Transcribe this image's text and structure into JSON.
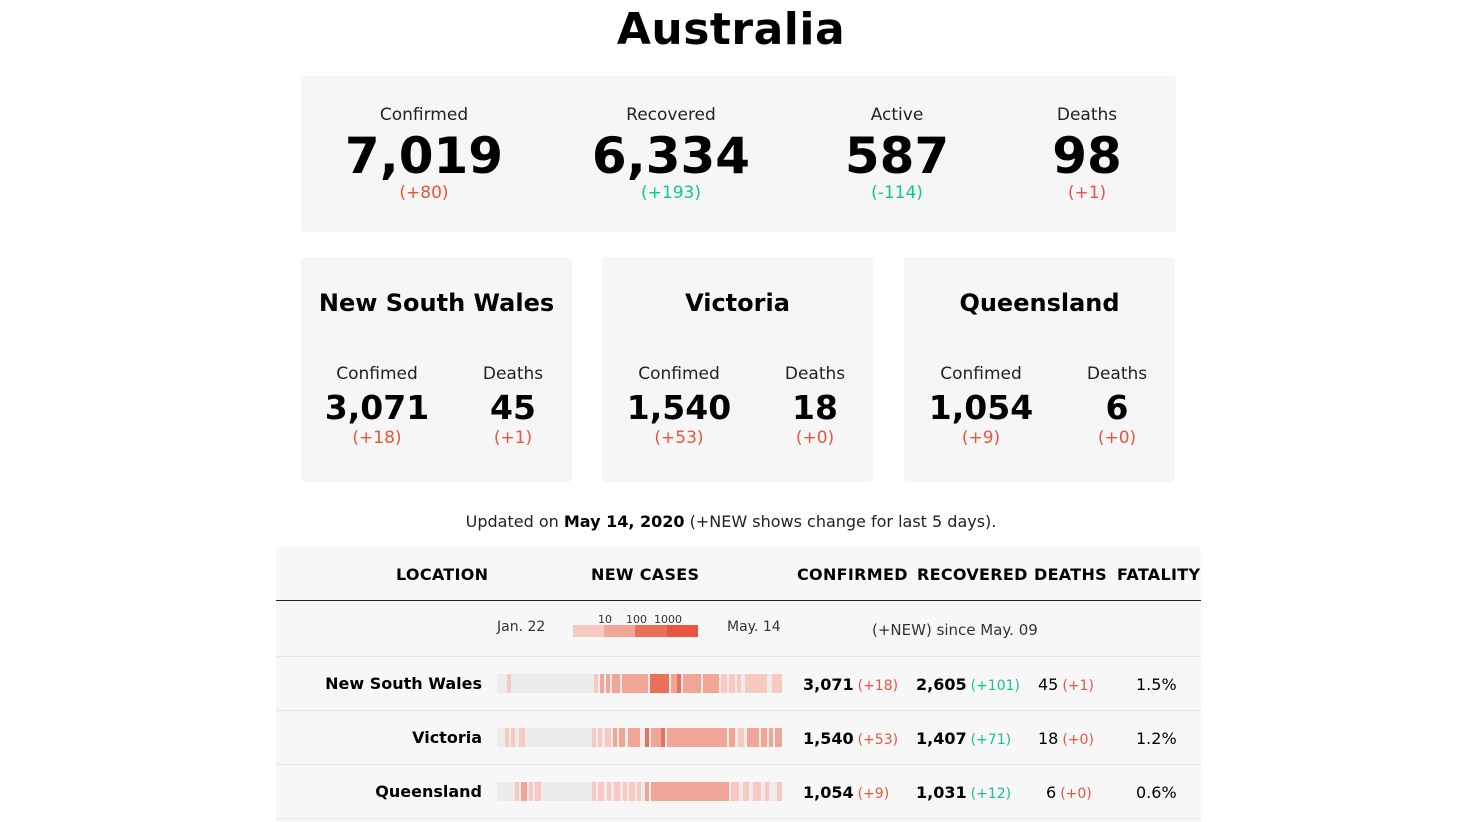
{
  "country": "Australia",
  "summary": {
    "confirmed": {
      "label": "Confirmed",
      "value": "7,019",
      "change": "(+80)"
    },
    "recovered": {
      "label": "Recovered",
      "value": "6,334",
      "change": "(+193)"
    },
    "active": {
      "label": "Active",
      "value": "587",
      "change": "(-114)"
    },
    "deaths": {
      "label": "Deaths",
      "value": "98",
      "change": "(+1)"
    }
  },
  "states": [
    {
      "name": "New South Wales",
      "confirmed_label": "Confimed",
      "confirmed": "3,071",
      "confirmed_change": "(+18)",
      "deaths_label": "Deaths",
      "deaths": "45",
      "deaths_change": "(+1)"
    },
    {
      "name": "Victoria",
      "confirmed_label": "Confimed",
      "confirmed": "1,540",
      "confirmed_change": "(+53)",
      "deaths_label": "Deaths",
      "deaths": "18",
      "deaths_change": "(+0)"
    },
    {
      "name": "Queensland",
      "confirmed_label": "Confimed",
      "confirmed": "1,054",
      "confirmed_change": "(+9)",
      "deaths_label": "Deaths",
      "deaths": "6",
      "deaths_change": "(+0)"
    }
  ],
  "updated": {
    "prefix": "Updated on",
    "date": "May 14, 2020",
    "suffix": "(+NEW shows change for last 5 days)."
  },
  "table": {
    "headers": {
      "location": "LOCATION",
      "new_cases": "NEW CASES",
      "confirmed": "CONFIRMED",
      "recovered": "RECOVERED",
      "deaths": "DEATHS",
      "fatality": "FATALITY"
    },
    "legend": {
      "start": "Jan. 22",
      "end": "May. 14",
      "scale": [
        "10",
        "100",
        "1000"
      ],
      "since": "(+NEW) since May. 09"
    },
    "rows": [
      {
        "location": "New South Wales",
        "confirmed": "3,071",
        "confirmed_change": "(+18)",
        "recovered": "2,605",
        "recovered_change": "(+101)",
        "deaths": "45",
        "deaths_change": "(+1)",
        "fatality": "1.5%"
      },
      {
        "location": "Victoria",
        "confirmed": "1,540",
        "confirmed_change": "(+53)",
        "recovered": "1,407",
        "recovered_change": "(+71)",
        "deaths": "18",
        "deaths_change": "(+0)",
        "fatality": "1.2%"
      },
      {
        "location": "Queensland",
        "confirmed": "1,054",
        "confirmed_change": "(+9)",
        "recovered": "1,031",
        "recovered_change": "(+12)",
        "deaths": "6",
        "deaths_change": "(+0)",
        "fatality": "0.6%"
      }
    ]
  },
  "colors": {
    "increase": "#e9553e",
    "decrease": "#12c58e",
    "card": "#f6f6f6",
    "heat_low": "#f7c9c0",
    "heat_mid": "#f1a596",
    "heat_high": "#ea705a",
    "heat_top": "#e9553e"
  }
}
